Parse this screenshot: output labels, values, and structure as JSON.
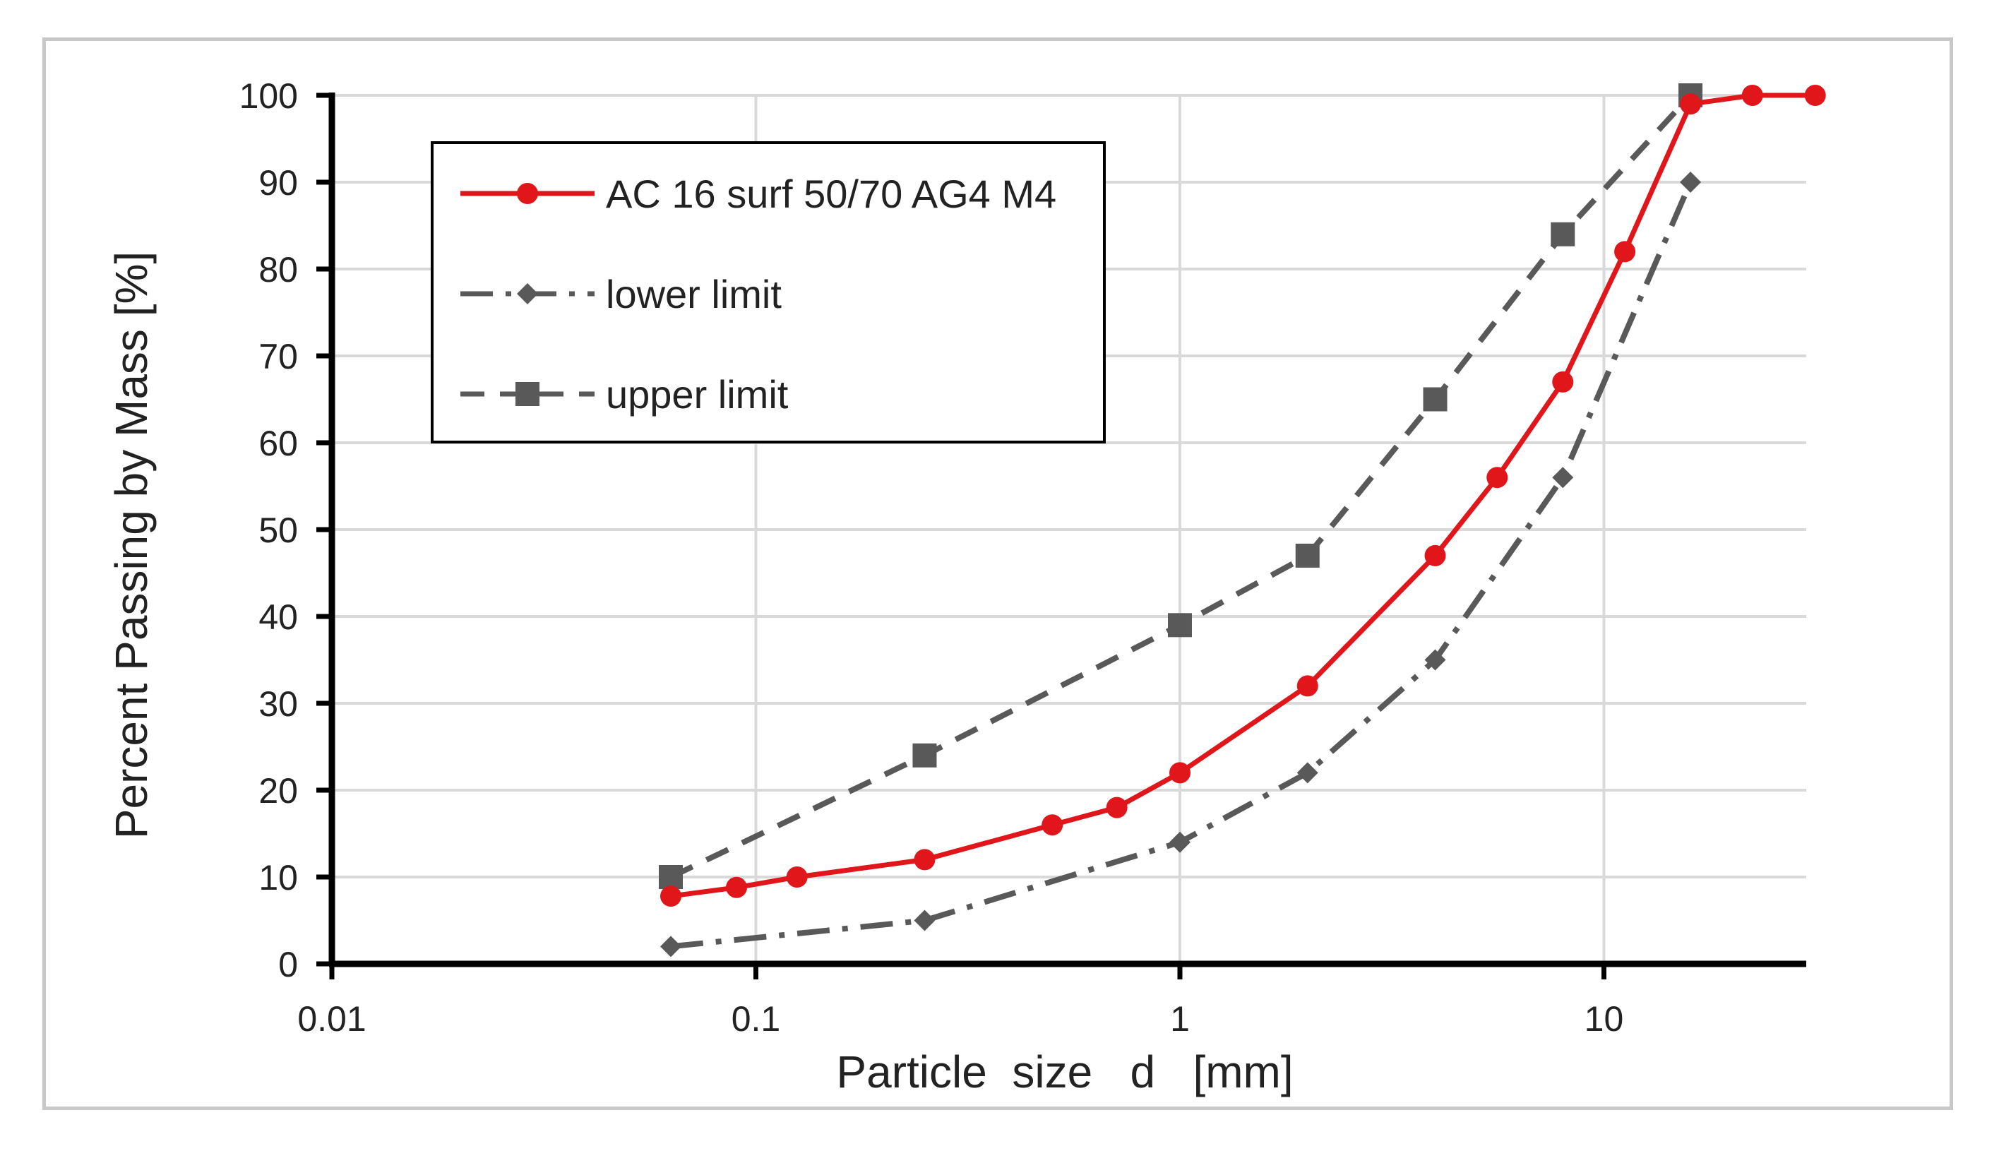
{
  "chart_data": {
    "type": "line",
    "xscale": "log",
    "xlabel": "Particle  size   d   [mm]",
    "ylabel": "Percent Passing by Mass [%]",
    "xlim": [
      0.01,
      30
    ],
    "ylim": [
      0,
      100
    ],
    "x_ticks": [
      0.01,
      0.1,
      1,
      10
    ],
    "x_tick_labels": [
      "0.01",
      "0.1",
      "1",
      "10"
    ],
    "y_ticks": [
      0,
      10,
      20,
      30,
      40,
      50,
      60,
      70,
      80,
      90,
      100
    ],
    "y_tick_labels": [
      "0",
      "10",
      "20",
      "30",
      "40",
      "50",
      "60",
      "70",
      "80",
      "90",
      "100"
    ],
    "grid": true,
    "legend_position": "top-left",
    "series": [
      {
        "name": "AC 16 surf 50/70 AG4 M4",
        "color": "#e0161b",
        "line_style": "solid",
        "marker": "circle",
        "x": [
          0.063,
          0.09,
          0.125,
          0.25,
          0.5,
          0.71,
          1,
          2,
          4,
          5.6,
          8,
          11.2,
          16,
          22.4,
          31.5
        ],
        "y": [
          7.8,
          8.8,
          10,
          12,
          16,
          18,
          22,
          32,
          47,
          56,
          67,
          82,
          99,
          100,
          100
        ]
      },
      {
        "name": "lower limit",
        "color": "#595959",
        "line_style": "dashdot",
        "marker": "diamond",
        "x": [
          0.063,
          0.25,
          1,
          2,
          4,
          8,
          16
        ],
        "y": [
          2,
          5,
          14,
          22,
          35,
          56,
          90
        ]
      },
      {
        "name": "upper limit",
        "color": "#595959",
        "line_style": "dashed",
        "marker": "square",
        "x": [
          0.063,
          0.25,
          1,
          2,
          4,
          8,
          16
        ],
        "y": [
          10,
          24,
          39,
          47,
          65,
          84,
          100
        ]
      }
    ]
  }
}
